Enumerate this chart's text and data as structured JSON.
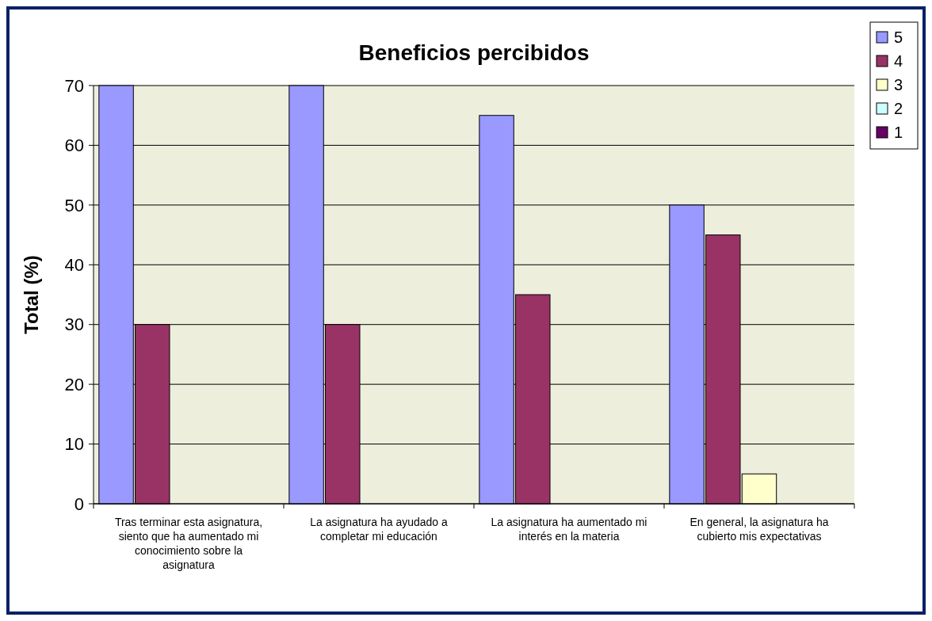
{
  "chart_data": {
    "type": "bar",
    "title": "Beneficios percibidos",
    "ylabel": "Total (%)",
    "categories": [
      "Tras terminar esta asignatura, siento que ha aumentado mi conocimiento sobre la asignatura",
      "La asignatura ha ayudado a completar mi educación",
      "La asignatura ha aumentado mi interés en la materia",
      "En general, la asignatura ha cubierto mis expectativas"
    ],
    "series": [
      {
        "name": "5",
        "color": "#9999ff",
        "values": [
          70,
          70,
          65,
          50
        ]
      },
      {
        "name": "4",
        "color": "#993366",
        "values": [
          30,
          30,
          35,
          45
        ]
      },
      {
        "name": "3",
        "color": "#ffffcc",
        "values": [
          0,
          0,
          0,
          5
        ]
      },
      {
        "name": "2",
        "color": "#ccffff",
        "values": [
          0,
          0,
          0,
          0
        ]
      },
      {
        "name": "1",
        "color": "#660066",
        "values": [
          0,
          0,
          0,
          0
        ]
      }
    ],
    "ylim": [
      0,
      70
    ],
    "yticks": [
      0,
      10,
      20,
      30,
      40,
      50,
      60,
      70
    ],
    "grid": "y",
    "legend": "top right"
  }
}
